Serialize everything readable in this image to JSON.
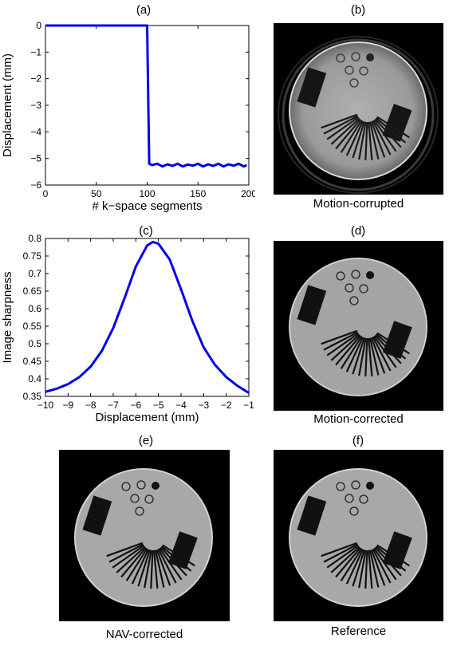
{
  "panels": {
    "a": {
      "label": "(a)"
    },
    "b": {
      "label": "(b)",
      "caption": "Motion-corrupted"
    },
    "c": {
      "label": "(c)"
    },
    "d": {
      "label": "(d)",
      "caption": "Motion-corrected"
    },
    "e": {
      "label": "(e)",
      "caption": "NAV-corrected"
    },
    "f": {
      "label": "(f)",
      "caption": "Reference"
    }
  },
  "chart_data": [
    {
      "type": "line",
      "panel": "(a)",
      "xlabel": "# k−space segments",
      "ylabel": "Displacement (mm)",
      "xlim": [
        0,
        200
      ],
      "ylim": [
        -6,
        0
      ],
      "xticks": [
        0,
        50,
        100,
        150,
        200
      ],
      "yticks": [
        0,
        -1,
        -2,
        -3,
        -4,
        -5,
        -6
      ],
      "xtick_labels": [
        "0",
        "50",
        "100",
        "150",
        "200"
      ],
      "ytick_labels": [
        "0",
        "−1",
        "−2",
        "−3",
        "−4",
        "−5",
        "−6"
      ],
      "grid": false,
      "color": "#0000ee",
      "series": [
        {
          "x": [
            0,
            100,
            102,
            105,
            110,
            115,
            120,
            125,
            130,
            135,
            140,
            145,
            150,
            155,
            160,
            165,
            170,
            175,
            180,
            185,
            190,
            195,
            198
          ],
          "y": [
            0,
            0,
            -5.2,
            -5.25,
            -5.2,
            -5.3,
            -5.22,
            -5.28,
            -5.2,
            -5.3,
            -5.23,
            -5.27,
            -5.2,
            -5.3,
            -5.22,
            -5.28,
            -5.2,
            -5.3,
            -5.22,
            -5.27,
            -5.2,
            -5.3,
            -5.25
          ]
        }
      ]
    },
    {
      "type": "line",
      "panel": "(c)",
      "xlabel": "Displacement (mm)",
      "ylabel": "Image sharpness",
      "xlim": [
        -10,
        -1
      ],
      "ylim": [
        0.35,
        0.8
      ],
      "xticks": [
        -10,
        -9,
        -8,
        -7,
        -6,
        -5,
        -4,
        -3,
        -2,
        -1
      ],
      "yticks": [
        0.35,
        0.4,
        0.45,
        0.5,
        0.55,
        0.6,
        0.65,
        0.7,
        0.75,
        0.8
      ],
      "xtick_labels": [
        "−10",
        "−9",
        "−8",
        "−7",
        "−6",
        "−5",
        "−4",
        "−3",
        "−2",
        "−1"
      ],
      "ytick_labels": [
        "0.35",
        "0.4",
        "0.45",
        "0.5",
        "0.55",
        "0.6",
        "0.65",
        "0.7",
        "0.75",
        "0.8"
      ],
      "grid": false,
      "color": "#0000ee",
      "series": [
        {
          "x": [
            -10,
            -9.5,
            -9,
            -8.5,
            -8,
            -7.5,
            -7,
            -6.5,
            -6,
            -5.5,
            -5.25,
            -5,
            -4.5,
            -4,
            -3.5,
            -3,
            -2.5,
            -2,
            -1.5,
            -1
          ],
          "y": [
            0.363,
            0.372,
            0.385,
            0.405,
            0.435,
            0.48,
            0.545,
            0.63,
            0.72,
            0.78,
            0.79,
            0.785,
            0.74,
            0.655,
            0.565,
            0.49,
            0.44,
            0.405,
            0.38,
            0.36
          ]
        }
      ]
    }
  ]
}
